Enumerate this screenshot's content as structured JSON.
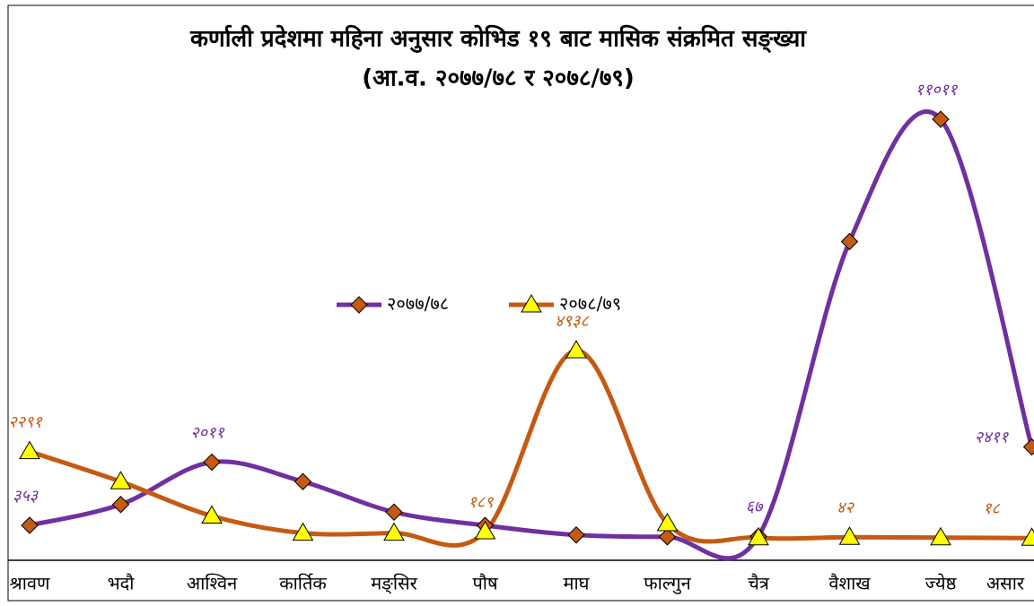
{
  "chart_data": {
    "type": "line",
    "title": "कर्णाली प्रदेशमा महिना अनुसार कोभिड १९ बाट मासिक संक्रमित सङ्ख्या",
    "subtitle": "(आ.व. २०७७/७८ र २०७८/७९)",
    "categories": [
      "श्रावण",
      "भदौ",
      "आश्विन",
      "कार्तिक",
      "मङ्सिर",
      "पौष",
      "माघ",
      "फाल्गुन",
      "चैत्र",
      "वैशाख",
      "ज्येष्ठ",
      "असार"
    ],
    "ylim": [
      0,
      12000
    ],
    "series": [
      {
        "name": "२०७७/७८",
        "color": "#7030a0",
        "marker_color": "#c55a11",
        "values": [
          353,
          900,
          2011,
          1500,
          700,
          350,
          100,
          50,
          67,
          7800,
          11011,
          2411
        ],
        "value_labels": [
          "३५३",
          null,
          "२०११",
          null,
          null,
          null,
          null,
          null,
          "६७",
          null,
          "११०११",
          "२४११"
        ]
      },
      {
        "name": "२०७८/७९",
        "color": "#c55a11",
        "marker_color": "#ffff00",
        "values": [
          2291,
          1500,
          600,
          150,
          150,
          189,
          4938,
          400,
          30,
          42,
          30,
          18
        ],
        "value_labels": [
          "२२९१",
          null,
          null,
          null,
          null,
          "१८९",
          "४९३८",
          null,
          null,
          "४२",
          null,
          "१८"
        ]
      }
    ],
    "legend": "center"
  }
}
